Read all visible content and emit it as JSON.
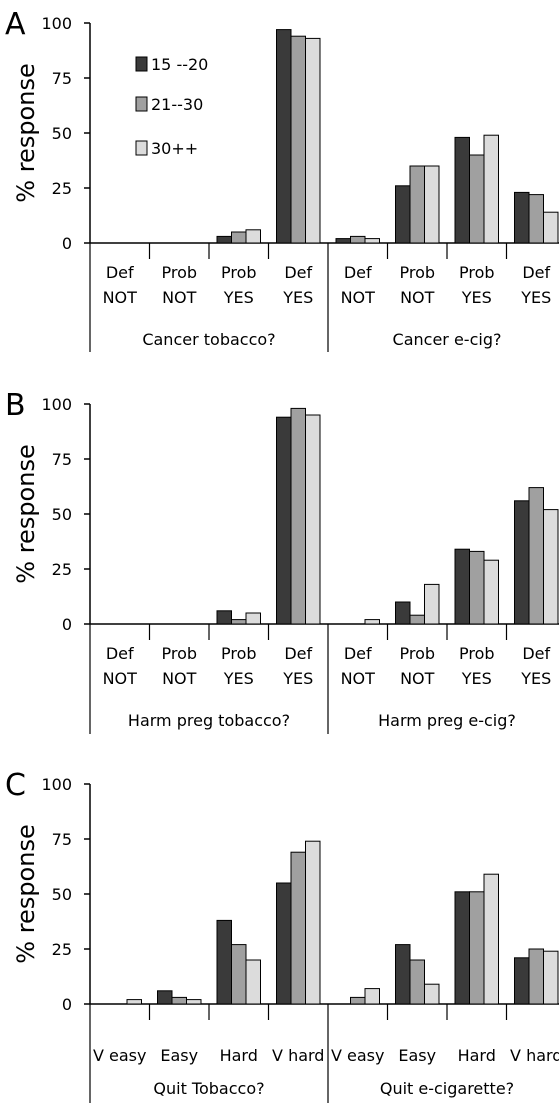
{
  "legend": {
    "series": [
      {
        "name": "15 --20",
        "color": "#3a3a3a"
      },
      {
        "name": "21--30",
        "color": "#a0a0a0"
      },
      {
        "name": "30++",
        "color": "#dcdcdc"
      }
    ]
  },
  "chart_data": [
    {
      "type": "bar",
      "panel_label": "A",
      "ylabel": "% response",
      "ylim": [
        0,
        100
      ],
      "yticks": [
        0,
        25,
        50,
        75,
        100
      ],
      "categories": [
        [
          "Def",
          "NOT"
        ],
        [
          "Prob",
          "NOT"
        ],
        [
          "Prob",
          "YES"
        ],
        [
          "Def",
          "YES"
        ],
        [
          "Def",
          "NOT"
        ],
        [
          "Prob",
          "NOT"
        ],
        [
          "Prob",
          "YES"
        ],
        [
          "Def",
          "YES"
        ]
      ],
      "groups": [
        "Cancer tobacco?",
        "Cancer e-cig?"
      ],
      "series": [
        {
          "name": "15 --20",
          "values": [
            0,
            0,
            3,
            97,
            2,
            26,
            48,
            23
          ]
        },
        {
          "name": "21--30",
          "values": [
            0,
            0,
            5,
            94,
            3,
            35,
            40,
            22
          ]
        },
        {
          "name": "30++",
          "values": [
            0,
            0,
            6,
            93,
            2,
            35,
            49,
            14
          ]
        }
      ]
    },
    {
      "type": "bar",
      "panel_label": "B",
      "ylabel": "% response",
      "ylim": [
        0,
        100
      ],
      "yticks": [
        0,
        25,
        50,
        75,
        100
      ],
      "categories": [
        [
          "Def",
          "NOT"
        ],
        [
          "Prob",
          "NOT"
        ],
        [
          "Prob",
          "YES"
        ],
        [
          "Def",
          "YES"
        ],
        [
          "Def",
          "NOT"
        ],
        [
          "Prob",
          "NOT"
        ],
        [
          "Prob",
          "YES"
        ],
        [
          "Def",
          "YES"
        ]
      ],
      "groups": [
        "Harm preg tobacco?",
        "Harm preg e-cig?"
      ],
      "series": [
        {
          "name": "15 --20",
          "values": [
            0,
            0,
            6,
            94,
            0,
            10,
            34,
            56
          ]
        },
        {
          "name": "21--30",
          "values": [
            0,
            0,
            2,
            98,
            0,
            4,
            33,
            62
          ]
        },
        {
          "name": "30++",
          "values": [
            0,
            0,
            5,
            95,
            2,
            18,
            29,
            52
          ]
        }
      ]
    },
    {
      "type": "bar",
      "panel_label": "C",
      "ylabel": "% response",
      "ylim": [
        0,
        100
      ],
      "yticks": [
        0,
        25,
        50,
        75,
        100
      ],
      "categories": [
        [
          "V easy"
        ],
        [
          "Easy"
        ],
        [
          "Hard"
        ],
        [
          "V hard"
        ],
        [
          "V easy"
        ],
        [
          "Easy"
        ],
        [
          "Hard"
        ],
        [
          "V hard"
        ]
      ],
      "groups": [
        "Quit Tobacco?",
        "Quit e-cigarette?"
      ],
      "series": [
        {
          "name": "15 --20",
          "values": [
            0,
            6,
            38,
            55,
            0,
            27,
            51,
            21
          ]
        },
        {
          "name": "21--30",
          "values": [
            0,
            3,
            27,
            69,
            3,
            20,
            51,
            25
          ]
        },
        {
          "name": "30++",
          "values": [
            2,
            2,
            20,
            74,
            7,
            9,
            59,
            24
          ]
        }
      ]
    }
  ]
}
